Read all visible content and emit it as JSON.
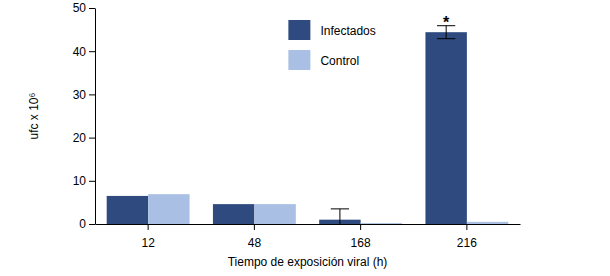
{
  "chart_data": {
    "type": "bar",
    "x_label": "Tiempo de exposición viral (h)",
    "y_label": "ufc x 10⁶",
    "categories": [
      "12",
      "48",
      "168",
      "216"
    ],
    "series": [
      {
        "name": "Infectados",
        "color": "#2e4a7e",
        "values": [
          6.5,
          4.6,
          1.0,
          44.4
        ],
        "errors": [
          null,
          null,
          2.5,
          1.5
        ]
      },
      {
        "name": "Control",
        "color": "#a9bfe3",
        "values": [
          6.9,
          4.6,
          0.2,
          0.5
        ]
      }
    ],
    "ylim": [
      0,
      50
    ],
    "yticks": [
      0,
      10,
      20,
      30,
      40,
      50
    ],
    "grid": false,
    "legend": "upper center",
    "annotations": [
      {
        "text": "*",
        "x": "216"
      }
    ]
  }
}
